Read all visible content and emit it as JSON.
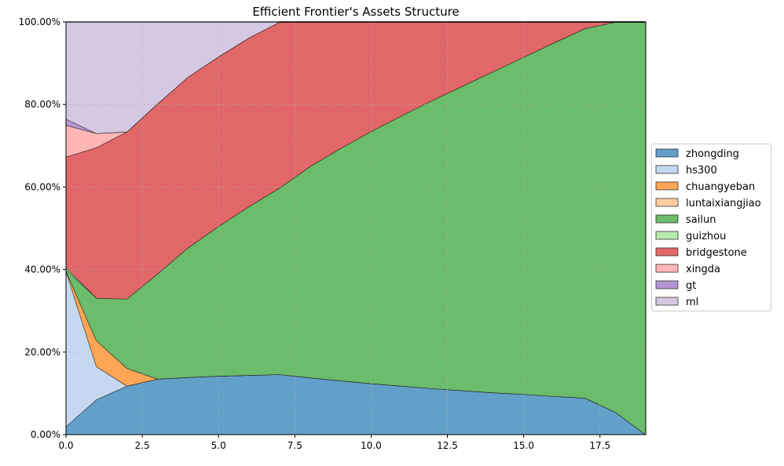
{
  "chart_data": {
    "type": "area",
    "stacked": true,
    "title": "Efficient Frontier's Assets Structure",
    "xlabel": "",
    "ylabel": "",
    "xlim": [
      0,
      19
    ],
    "ylim": [
      0,
      100
    ],
    "x_ticks": [
      0,
      2.5,
      5,
      7.5,
      10,
      12.5,
      15,
      17.5
    ],
    "x_tick_labels": [
      "0.0",
      "2.5",
      "5.0",
      "7.5",
      "10.0",
      "12.5",
      "15.0",
      "17.5"
    ],
    "y_ticks": [
      0,
      20,
      40,
      60,
      80,
      100
    ],
    "y_tick_labels": [
      "0.00%",
      "20.00%",
      "40.00%",
      "60.00%",
      "80.00%",
      "100.00%"
    ],
    "grid": true,
    "legend_position": "right",
    "x": [
      0,
      1,
      2,
      3,
      4,
      5,
      6,
      7,
      8,
      9,
      10,
      11,
      12,
      13,
      14,
      15,
      16,
      17,
      18,
      19
    ],
    "series": [
      {
        "name": "zhongding",
        "color": "#62a0ca",
        "values": [
          2,
          8.5,
          11.8,
          13.5,
          13.9,
          14.2,
          14.4,
          14.6,
          13.8,
          13.1,
          12.4,
          11.8,
          11.2,
          10.7,
          10.2,
          9.8,
          9.3,
          8.9,
          5.5,
          0
        ]
      },
      {
        "name": "hs300",
        "color": "#c6d8ef",
        "values": [
          37.7,
          8,
          0,
          0,
          0,
          0,
          0,
          0,
          0,
          0,
          0,
          0,
          0,
          0,
          0,
          0,
          0,
          0,
          0,
          0
        ]
      },
      {
        "name": "chuangyeban",
        "color": "#ffa556",
        "values": [
          0,
          6.3,
          4.3,
          0,
          0,
          0,
          0,
          0,
          0,
          0,
          0,
          0,
          0,
          0,
          0,
          0,
          0,
          0,
          0,
          0
        ]
      },
      {
        "name": "luntaixiangjiao",
        "color": "#ffcf9f",
        "values": [
          0,
          0,
          0,
          0,
          0,
          0,
          0,
          0,
          0,
          0,
          0,
          0,
          0,
          0,
          0,
          0,
          0,
          0,
          0,
          0
        ]
      },
      {
        "name": "sailun",
        "color": "#6bbc6b",
        "values": [
          0.3,
          10.3,
          16.8,
          25.5,
          31.4,
          36.3,
          40.9,
          45.2,
          51.2,
          56.3,
          61.1,
          65.5,
          69.8,
          73.8,
          77.8,
          81.7,
          85.7,
          89.5,
          94.5,
          100
        ]
      },
      {
        "name": "guizhou",
        "color": "#b7e9ad",
        "values": [
          0.5,
          0,
          0,
          0,
          0,
          0,
          0,
          0,
          0,
          0,
          0,
          0,
          0,
          0,
          0,
          0,
          0,
          0,
          0,
          0
        ]
      },
      {
        "name": "bridgestone",
        "color": "#e26768",
        "values": [
          26.8,
          36.5,
          40.5,
          41.2,
          41.4,
          41.1,
          40.9,
          40.2,
          35,
          30.6,
          26.5,
          22.7,
          19,
          15.5,
          12,
          8.5,
          5,
          1.6,
          0,
          0
        ]
      },
      {
        "name": "xingda",
        "color": "#ffb7b6",
        "values": [
          7.7,
          3.4,
          0,
          0,
          0,
          0,
          0,
          0,
          0,
          0,
          0,
          0,
          0,
          0,
          0,
          0,
          0,
          0,
          0,
          0
        ]
      },
      {
        "name": "gt",
        "color": "#b495d1",
        "values": [
          1.5,
          0,
          0,
          0,
          0,
          0,
          0,
          0,
          0,
          0,
          0,
          0,
          0,
          0,
          0,
          0,
          0,
          0,
          0,
          0
        ]
      },
      {
        "name": "ml",
        "color": "#d6c8e2",
        "values": [
          23.5,
          27,
          26.6,
          19.8,
          13.3,
          8.4,
          3.8,
          0,
          0,
          0,
          0,
          0,
          0,
          0,
          0,
          0,
          0,
          0,
          0,
          0
        ]
      }
    ]
  }
}
